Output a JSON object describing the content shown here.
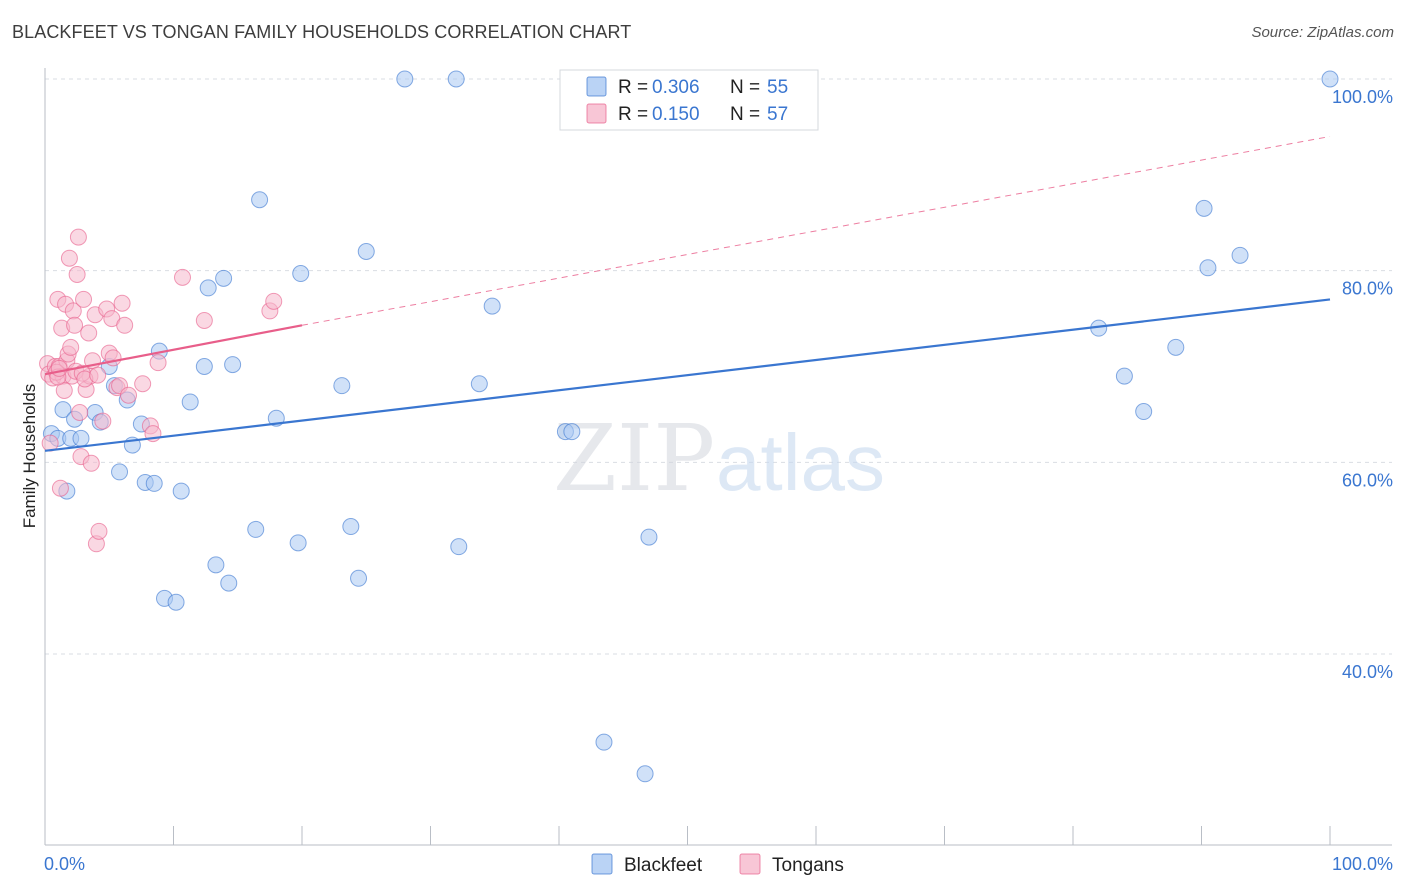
{
  "chart_data": {
    "type": "scatter",
    "title": "BLACKFEET VS TONGAN FAMILY HOUSEHOLDS CORRELATION CHART",
    "source": "Source: ZipAtlas.com",
    "ylabel": "Family Households",
    "xlabel": "",
    "xlim": [
      0,
      100
    ],
    "ylim": [
      20,
      102
    ],
    "x_tick_labels": [
      "0.0%",
      "100.0%"
    ],
    "y_ticks": [
      {
        "value": 100,
        "label": "100.0%"
      },
      {
        "value": 80,
        "label": "80.0%"
      },
      {
        "value": 60,
        "label": "60.0%"
      },
      {
        "value": 40,
        "label": "40.0%"
      }
    ],
    "grid": true,
    "legend_position": "bottom-center",
    "watermark": "ZIPatlas",
    "stats": [
      {
        "series": "Blackfeet",
        "r_label": "R =",
        "r_value": "0.306",
        "n_label": "N =",
        "n_value": "55"
      },
      {
        "series": "Tongans",
        "r_label": "R =",
        "r_value": "0.150",
        "n_label": "N =",
        "n_value": "57"
      }
    ],
    "series": [
      {
        "name": "Blackfeet",
        "color": "#3a76d0",
        "fill": "#a9c8f2",
        "trend": {
          "x0": 0,
          "y0": 61.2,
          "x1": 100,
          "y1": 77.0,
          "dashed_extension": false
        },
        "points": [
          [
            0.5,
            63.0
          ],
          [
            1.0,
            62.5
          ],
          [
            1.4,
            65.5
          ],
          [
            1.7,
            57.0
          ],
          [
            2.0,
            62.5
          ],
          [
            2.3,
            64.5
          ],
          [
            2.8,
            62.5
          ],
          [
            3.9,
            65.2
          ],
          [
            4.3,
            64.2
          ],
          [
            5.0,
            70.0
          ],
          [
            5.4,
            68.0
          ],
          [
            5.8,
            59.0
          ],
          [
            6.4,
            66.5
          ],
          [
            6.8,
            61.8
          ],
          [
            7.5,
            64.0
          ],
          [
            7.8,
            57.9
          ],
          [
            8.5,
            57.8
          ],
          [
            8.9,
            71.6
          ],
          [
            9.3,
            45.8
          ],
          [
            10.2,
            45.4
          ],
          [
            10.6,
            57.0
          ],
          [
            11.3,
            66.3
          ],
          [
            12.4,
            70.0
          ],
          [
            12.7,
            78.2
          ],
          [
            13.3,
            49.3
          ],
          [
            13.9,
            79.2
          ],
          [
            14.3,
            47.4
          ],
          [
            14.6,
            70.2
          ],
          [
            16.4,
            53.0
          ],
          [
            16.7,
            87.4
          ],
          [
            18.0,
            64.6
          ],
          [
            19.7,
            51.6
          ],
          [
            19.9,
            79.7
          ],
          [
            23.1,
            68.0
          ],
          [
            23.8,
            53.3
          ],
          [
            24.4,
            47.9
          ],
          [
            25.0,
            82.0
          ],
          [
            28.0,
            100.0
          ],
          [
            32.0,
            100.0
          ],
          [
            32.2,
            51.2
          ],
          [
            33.8,
            68.2
          ],
          [
            34.8,
            76.3
          ],
          [
            40.5,
            63.2
          ],
          [
            41.0,
            63.2
          ],
          [
            43.5,
            30.8
          ],
          [
            46.7,
            27.5
          ],
          [
            47.0,
            52.2
          ],
          [
            82.0,
            74.0
          ],
          [
            84.0,
            69.0
          ],
          [
            85.5,
            65.3
          ],
          [
            88.0,
            72.0
          ],
          [
            90.2,
            86.5
          ],
          [
            90.5,
            80.3
          ],
          [
            93.0,
            81.6
          ],
          [
            100.0,
            100.0
          ]
        ]
      },
      {
        "name": "Tongans",
        "color": "#e85e8a",
        "fill": "#f6b8cc",
        "trend": {
          "x0": 0,
          "y0": 69.2,
          "x1": 20,
          "y1": 74.3,
          "dashed_extension": true,
          "dash_x1": 100,
          "dash_y1": 94.0
        },
        "points": [
          [
            0.2,
            70.3
          ],
          [
            0.3,
            69.2
          ],
          [
            0.4,
            62.0
          ],
          [
            0.6,
            68.8
          ],
          [
            0.8,
            70.0
          ],
          [
            1.0,
            77.0
          ],
          [
            1.1,
            70.0
          ],
          [
            1.2,
            57.3
          ],
          [
            1.3,
            74.0
          ],
          [
            1.4,
            69.0
          ],
          [
            1.5,
            67.5
          ],
          [
            1.6,
            76.5
          ],
          [
            1.7,
            70.6
          ],
          [
            1.8,
            71.3
          ],
          [
            1.9,
            81.3
          ],
          [
            2.0,
            72.0
          ],
          [
            2.1,
            69.0
          ],
          [
            2.2,
            75.8
          ],
          [
            2.3,
            74.3
          ],
          [
            2.4,
            69.5
          ],
          [
            2.5,
            79.6
          ],
          [
            2.6,
            83.5
          ],
          [
            2.7,
            65.2
          ],
          [
            2.8,
            60.6
          ],
          [
            3.0,
            77.0
          ],
          [
            3.2,
            67.6
          ],
          [
            3.4,
            73.5
          ],
          [
            3.5,
            69.0
          ],
          [
            3.6,
            59.9
          ],
          [
            3.7,
            70.6
          ],
          [
            3.9,
            75.4
          ],
          [
            4.0,
            51.5
          ],
          [
            4.2,
            52.8
          ],
          [
            4.5,
            64.3
          ],
          [
            4.8,
            76.0
          ],
          [
            5.0,
            71.4
          ],
          [
            5.2,
            75.0
          ],
          [
            5.3,
            70.9
          ],
          [
            5.6,
            67.8
          ],
          [
            5.8,
            68.0
          ],
          [
            6.0,
            76.6
          ],
          [
            6.2,
            74.3
          ],
          [
            6.5,
            67.0
          ],
          [
            7.6,
            68.2
          ],
          [
            8.2,
            63.8
          ],
          [
            8.4,
            63.0
          ],
          [
            8.8,
            70.4
          ],
          [
            10.7,
            79.3
          ],
          [
            12.4,
            74.8
          ],
          [
            17.5,
            75.8
          ],
          [
            17.8,
            76.8
          ],
          [
            0.9,
            69.4
          ],
          [
            1.0,
            68.9
          ],
          [
            1.1,
            69.8
          ],
          [
            2.9,
            69.3
          ],
          [
            3.1,
            68.7
          ],
          [
            4.1,
            69.1
          ]
        ]
      }
    ]
  }
}
